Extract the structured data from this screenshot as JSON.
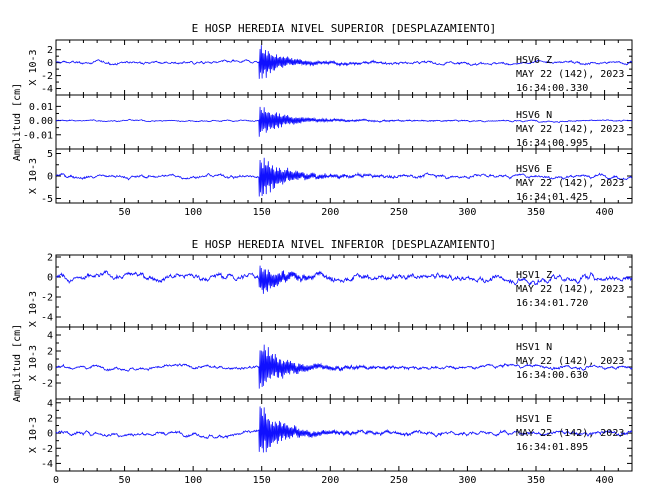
{
  "chart_data": [
    {
      "type": "line",
      "title": "E HOSP HEREDIA NIVEL SUPERIOR [DESPLAZAMIENTO]",
      "ylabel": "Amplitud [cm]",
      "xlim": [
        0,
        420
      ],
      "xticks": [
        50,
        100,
        150,
        200,
        250,
        300,
        350,
        400
      ],
      "panels": [
        {
          "scale_label": "X 10-3",
          "ylim": [
            -5,
            3.5
          ],
          "yticks": [
            2,
            0,
            -2,
            -4
          ],
          "ytick_labels": [
            "2",
            "0",
            "-2",
            "-4"
          ],
          "channel": "HSV6 Z",
          "date": "MAY 22 (142), 2023",
          "time": "16:34:00.330",
          "noise": 0.25,
          "drift": 0.35,
          "quake": 2.8
        },
        {
          "scale_label": "",
          "ylim": [
            -0.02,
            0.018
          ],
          "yticks": [
            0.01,
            0.0,
            -0.01
          ],
          "ytick_labels": [
            "0.01",
            "0.00",
            "-0.01"
          ],
          "channel": "HSV6 N",
          "date": "MAY 22 (142), 2023",
          "time": "16:34:00.995",
          "noise": 0.0006,
          "drift": 0.0008,
          "quake": 0.013
        },
        {
          "scale_label": "X 10-3",
          "ylim": [
            -6,
            6
          ],
          "yticks": [
            5,
            0,
            -5
          ],
          "ytick_labels": [
            "5",
            "0",
            "-5"
          ],
          "channel": "HSV6 E",
          "date": "MAY 22 (142), 2023",
          "time": "16:34:01.425",
          "noise": 0.45,
          "drift": 0.6,
          "quake": 5.5
        }
      ]
    },
    {
      "type": "line",
      "title": "E HOSP HEREDIA NIVEL INFERIOR [DESPLAZAMIENTO]",
      "ylabel": "Amplitud [cm]",
      "xlim": [
        0,
        420
      ],
      "xticks": [
        0,
        50,
        100,
        150,
        200,
        250,
        300,
        350,
        400
      ],
      "panels": [
        {
          "scale_label": "X 10-3",
          "ylim": [
            -5,
            2.2
          ],
          "yticks": [
            2,
            0,
            -2,
            -4
          ],
          "ytick_labels": [
            "2",
            "0",
            "-2",
            "-4"
          ],
          "channel": "HSV1 Z",
          "date": "MAY 22 (142), 2023",
          "time": "16:34:01.720",
          "noise": 0.35,
          "drift": 0.8,
          "quake": 1.6
        },
        {
          "scale_label": "X 10-3",
          "ylim": [
            -4,
            5
          ],
          "yticks": [
            4,
            2,
            0,
            -2
          ],
          "ytick_labels": [
            "4",
            "2",
            "0",
            "-2"
          ],
          "channel": "HSV1 N",
          "date": "MAY 22 (142), 2023",
          "time": "16:34:00.630",
          "noise": 0.25,
          "drift": 0.45,
          "quake": 3.5
        },
        {
          "scale_label": "X 10-3",
          "ylim": [
            -5,
            4.5
          ],
          "yticks": [
            4,
            2,
            0,
            -2,
            -4
          ],
          "ytick_labels": [
            "4",
            "2",
            "0",
            "-2",
            "-4"
          ],
          "channel": "HSV1 E",
          "date": "MAY 22 (142), 2023",
          "time": "16:34:01.895",
          "noise": 0.3,
          "drift": 0.55,
          "quake": 3.8
        }
      ]
    }
  ],
  "colors": {
    "trace": "#1010ff",
    "axes": "#000000"
  }
}
